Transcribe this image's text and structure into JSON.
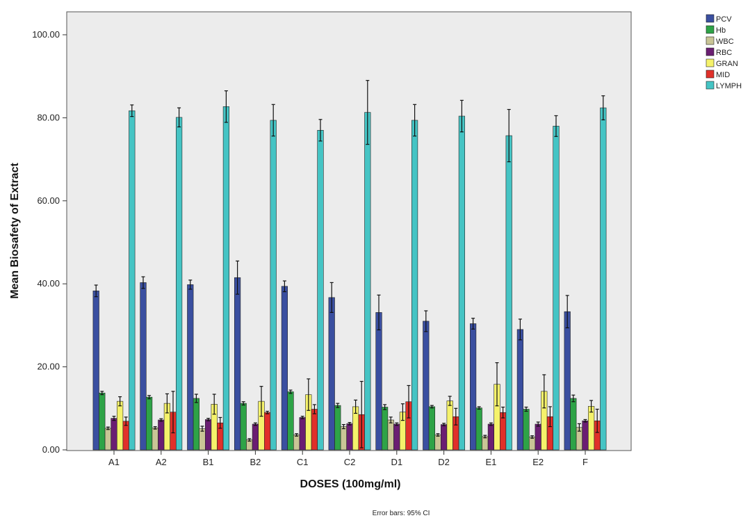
{
  "chart_data": {
    "type": "bar",
    "title": "",
    "xlabel": "DOSES (100mg/ml)",
    "ylabel": "Mean Biosafety of Extract",
    "ylim": [
      0,
      100
    ],
    "yticks": [
      "0.00",
      "20.00",
      "40.00",
      "60.00",
      "80.00",
      "100.00"
    ],
    "footnote": "Error bars: 95% CI",
    "categories": [
      "A1",
      "A2",
      "B1",
      "B2",
      "C1",
      "C2",
      "D1",
      "D2",
      "E1",
      "E2",
      "F"
    ],
    "legend_position": "top-right",
    "grid": false,
    "series": [
      {
        "name": "PCV",
        "color": "#3a4fa0",
        "values": [
          38.3,
          40.3,
          39.8,
          41.5,
          39.4,
          36.7,
          33.1,
          31.0,
          30.4,
          29.0,
          33.3
        ],
        "errors": [
          1.4,
          1.4,
          1.1,
          4.0,
          1.3,
          3.6,
          4.2,
          2.5,
          1.3,
          2.5,
          3.9
        ]
      },
      {
        "name": "Hb",
        "color": "#2ea347",
        "values": [
          13.7,
          12.7,
          12.4,
          11.2,
          14.0,
          10.7,
          10.3,
          10.4,
          10.1,
          9.8,
          12.4
        ],
        "errors": [
          0.4,
          0.4,
          1.0,
          0.4,
          0.4,
          0.5,
          0.6,
          0.3,
          0.3,
          0.5,
          0.8
        ]
      },
      {
        "name": "WBC",
        "color": "#c9c596",
        "values": [
          5.2,
          5.3,
          5.1,
          2.4,
          3.6,
          5.6,
          7.2,
          3.6,
          3.2,
          3.1,
          5.4
        ],
        "errors": [
          0.3,
          0.3,
          0.6,
          0.3,
          0.3,
          0.5,
          0.7,
          0.3,
          0.3,
          0.3,
          0.9
        ]
      },
      {
        "name": "RBC",
        "color": "#6a1e72",
        "values": [
          7.6,
          7.2,
          7.3,
          6.2,
          7.8,
          6.3,
          6.2,
          6.1,
          6.2,
          6.2,
          7.0
        ],
        "errors": [
          0.5,
          0.3,
          0.3,
          0.3,
          0.3,
          0.3,
          0.3,
          0.3,
          0.3,
          0.5,
          0.3
        ]
      },
      {
        "name": "GRAN",
        "color": "#f5f26b",
        "values": [
          11.7,
          11.2,
          11.0,
          11.7,
          13.3,
          10.4,
          9.1,
          11.8,
          15.8,
          14.1,
          10.5
        ],
        "errors": [
          1.1,
          2.3,
          2.4,
          3.6,
          3.8,
          1.6,
          2.0,
          1.1,
          5.2,
          4.0,
          1.4
        ]
      },
      {
        "name": "MID",
        "color": "#e0302a",
        "values": [
          6.9,
          9.1,
          6.5,
          9.0,
          9.8,
          8.5,
          11.6,
          8.0,
          9.0,
          8.0,
          7.0
        ],
        "errors": [
          1.0,
          5.0,
          1.3,
          0.3,
          1.1,
          8.0,
          3.9,
          2.0,
          1.3,
          2.4,
          2.8
        ]
      },
      {
        "name": "LYMPH",
        "color": "#45c4c4",
        "values": [
          81.7,
          80.1,
          82.7,
          79.4,
          77.0,
          81.3,
          79.4,
          80.4,
          75.7,
          78.0,
          82.4
        ],
        "errors": [
          1.4,
          2.3,
          3.8,
          3.8,
          2.6,
          7.7,
          3.8,
          3.8,
          6.3,
          2.5,
          2.9
        ]
      }
    ]
  }
}
